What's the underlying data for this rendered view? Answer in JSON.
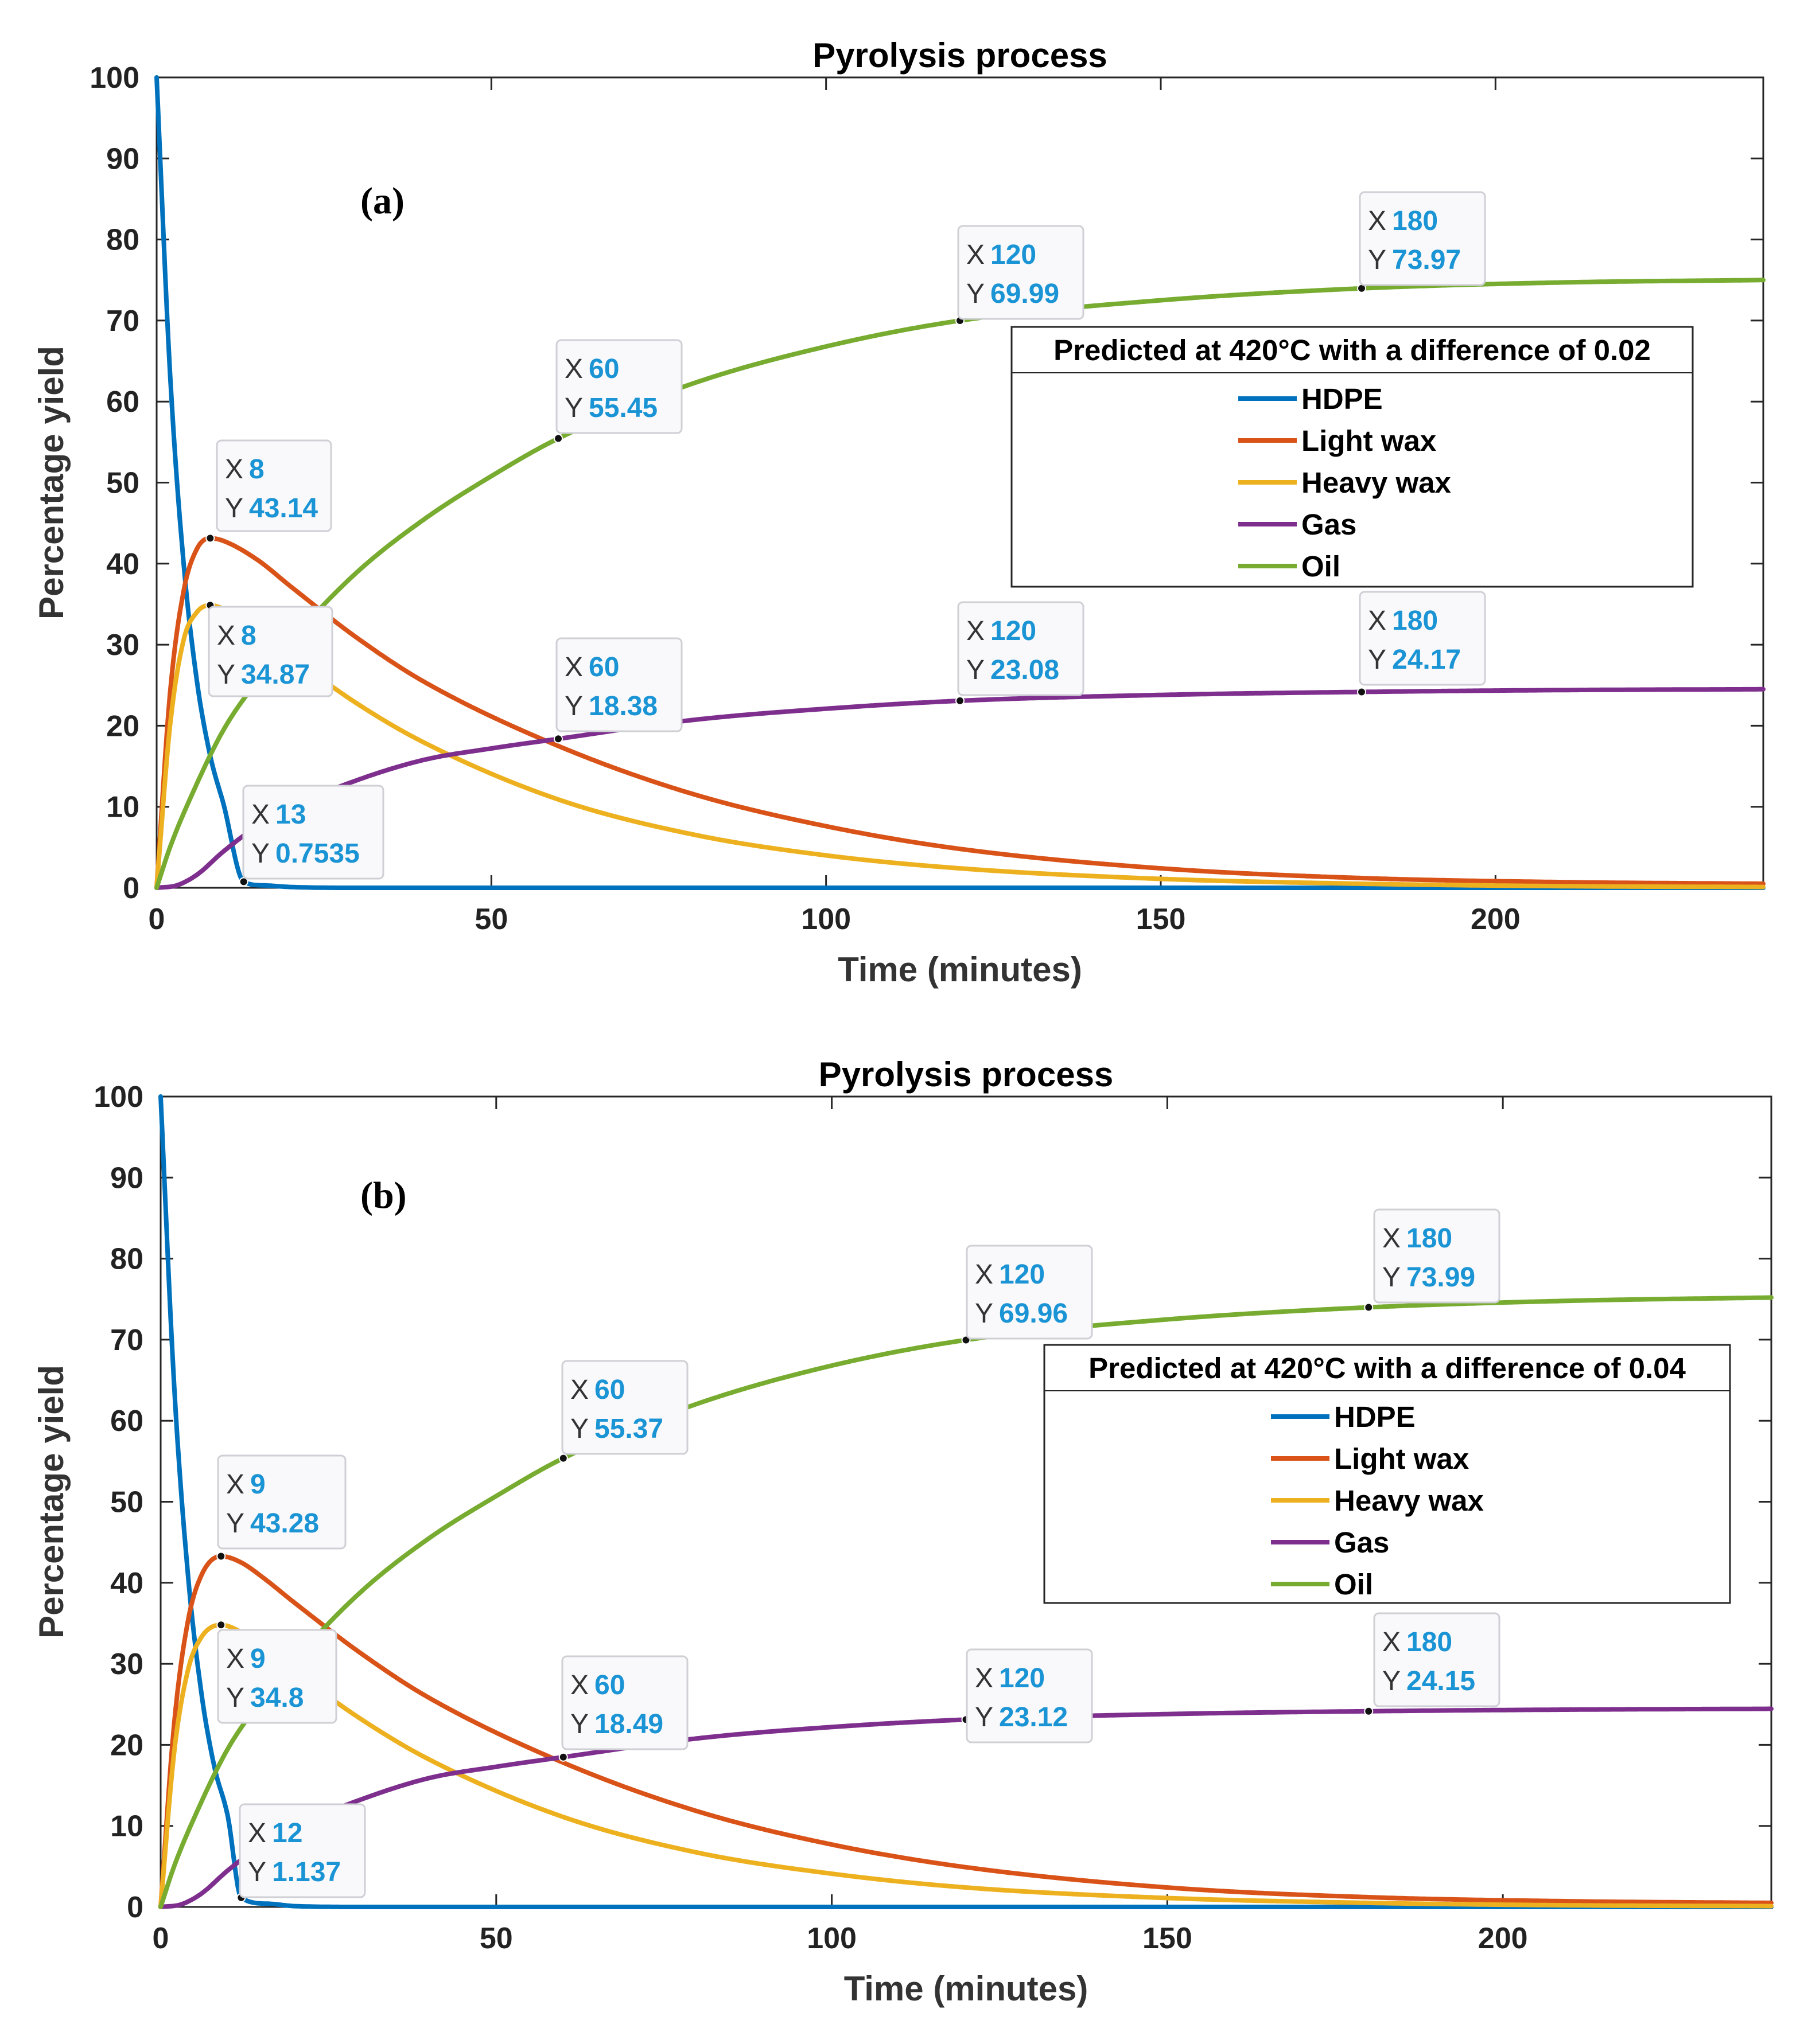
{
  "chart_data": [
    {
      "panel_label": "(a)",
      "type": "line",
      "title": "Pyrolysis process",
      "xlabel": "Time (minutes)",
      "ylabel": "Percentage yield",
      "xlim": [
        0,
        240
      ],
      "ylim": [
        0,
        100
      ],
      "xticks": [
        0,
        50,
        100,
        150,
        200
      ],
      "yticks": [
        0,
        10,
        20,
        30,
        40,
        50,
        60,
        70,
        80,
        90,
        100
      ],
      "legend_title": "Predicted at 420°C with a difference of 0.02",
      "legend_position": "right-center",
      "series": [
        {
          "name": "HDPE",
          "color": "#0072BD",
          "x": [
            0,
            2,
            4,
            6,
            8,
            10,
            13,
            16,
            20,
            30,
            240
          ],
          "y": [
            100,
            63.5,
            40.3,
            25.6,
            16.3,
            10.3,
            0.7535,
            0.3,
            0.1,
            0,
            0
          ]
        },
        {
          "name": "Light wax",
          "color": "#D95319",
          "x": [
            0,
            2,
            4,
            6,
            8,
            10,
            15,
            20,
            30,
            40,
            60,
            80,
            100,
            120,
            150,
            180,
            210,
            240
          ],
          "y": [
            0,
            24,
            36.5,
            41.8,
            43.14,
            42.8,
            40.5,
            37.2,
            30.8,
            25.4,
            17.5,
            11.6,
            7.6,
            4.8,
            2.4,
            1.2,
            0.7,
            0.5
          ]
        },
        {
          "name": "Heavy wax",
          "color": "#EDB120",
          "x": [
            0,
            2,
            4,
            6,
            8,
            10,
            15,
            20,
            30,
            40,
            60,
            80,
            100,
            120,
            150,
            180,
            210,
            240
          ],
          "y": [
            0,
            20,
            30.5,
            34,
            34.87,
            34.4,
            31.8,
            28.6,
            22.7,
            17.9,
            10.9,
            6.6,
            4,
            2.4,
            1.1,
            0.5,
            0.2,
            0.1
          ]
        },
        {
          "name": "Gas",
          "color": "#7E2F8E",
          "x": [
            0,
            3,
            6,
            10,
            15,
            20,
            30,
            40,
            50,
            60,
            80,
            100,
            120,
            150,
            180,
            210,
            240
          ],
          "y": [
            0,
            0.3,
            1.6,
            4.5,
            7.6,
            9.9,
            13.3,
            15.8,
            17.2,
            18.38,
            20.7,
            22.1,
            23.08,
            23.8,
            24.17,
            24.4,
            24.5
          ]
        },
        {
          "name": "Oil",
          "color": "#77AC30",
          "x": [
            0,
            2,
            5,
            10,
            15,
            20,
            30,
            40,
            50,
            60,
            80,
            100,
            120,
            150,
            180,
            210,
            240
          ],
          "y": [
            0,
            5,
            11,
            19.5,
            25.5,
            30.5,
            39,
            45.5,
            50.8,
            55.45,
            62.2,
            66.8,
            69.99,
            72.5,
            73.97,
            74.7,
            75
          ]
        }
      ],
      "annotations": [
        {
          "series": "Light wax",
          "x": 8,
          "y": 43.14,
          "x_label": "8",
          "y_label": "43.14"
        },
        {
          "series": "Heavy wax",
          "x": 8,
          "y": 34.87,
          "x_label": "8",
          "y_label": "34.87"
        },
        {
          "series": "HDPE",
          "x": 13,
          "y": 0.7535,
          "x_label": "13",
          "y_label": "0.7535"
        },
        {
          "series": "Oil",
          "x": 60,
          "y": 55.45,
          "x_label": "60",
          "y_label": "55.45"
        },
        {
          "series": "Oil",
          "x": 120,
          "y": 69.99,
          "x_label": "120",
          "y_label": "69.99"
        },
        {
          "series": "Oil",
          "x": 180,
          "y": 73.97,
          "x_label": "180",
          "y_label": "73.97"
        },
        {
          "series": "Gas",
          "x": 60,
          "y": 18.38,
          "x_label": "60",
          "y_label": "18.38"
        },
        {
          "series": "Gas",
          "x": 120,
          "y": 23.08,
          "x_label": "120",
          "y_label": "23.08"
        },
        {
          "series": "Gas",
          "x": 180,
          "y": 24.17,
          "x_label": "180",
          "y_label": "24.17"
        }
      ]
    },
    {
      "panel_label": "(b)",
      "type": "line",
      "title": "Pyrolysis process",
      "xlabel": "Time (minutes)",
      "ylabel": "Percentage yield",
      "xlim": [
        0,
        240
      ],
      "ylim": [
        0,
        100
      ],
      "xticks": [
        0,
        50,
        100,
        150,
        200
      ],
      "yticks": [
        0,
        10,
        20,
        30,
        40,
        50,
        60,
        70,
        80,
        90,
        100
      ],
      "legend_title": "Predicted at 420°C with a difference of 0.04",
      "legend_position": "right-center",
      "series": [
        {
          "name": "HDPE",
          "color": "#0072BD",
          "x": [
            0,
            2,
            4,
            6,
            8,
            10,
            12,
            16,
            20,
            30,
            240
          ],
          "y": [
            100,
            64.5,
            41.6,
            26.8,
            17.3,
            11.2,
            1.137,
            0.4,
            0.1,
            0,
            0
          ]
        },
        {
          "name": "Light wax",
          "color": "#D95319",
          "x": [
            0,
            2,
            4,
            6,
            9,
            12,
            15,
            20,
            30,
            40,
            60,
            80,
            100,
            120,
            150,
            180,
            210,
            240
          ],
          "y": [
            0,
            22.5,
            35,
            40.8,
            43.28,
            42.5,
            40.8,
            37.5,
            31.2,
            25.8,
            17.8,
            11.8,
            7.7,
            4.9,
            2.4,
            1.2,
            0.7,
            0.5
          ]
        },
        {
          "name": "Heavy wax",
          "color": "#EDB120",
          "x": [
            0,
            2,
            4,
            6,
            9,
            12,
            15,
            20,
            30,
            40,
            60,
            80,
            100,
            120,
            150,
            180,
            210,
            240
          ],
          "y": [
            0,
            19,
            29,
            33.2,
            34.8,
            33.9,
            32.2,
            29,
            23.1,
            18.2,
            11.1,
            6.7,
            4.1,
            2.4,
            1.1,
            0.5,
            0.2,
            0.1
          ]
        },
        {
          "name": "Gas",
          "color": "#7E2F8E",
          "x": [
            0,
            3,
            6,
            10,
            15,
            20,
            30,
            40,
            50,
            60,
            80,
            100,
            120,
            150,
            180,
            210,
            240
          ],
          "y": [
            0,
            0.3,
            1.6,
            4.5,
            7.6,
            9.9,
            13.3,
            15.9,
            17.3,
            18.49,
            20.8,
            22.2,
            23.12,
            23.8,
            24.15,
            24.35,
            24.45
          ]
        },
        {
          "name": "Oil",
          "color": "#77AC30",
          "x": [
            0,
            2,
            5,
            10,
            15,
            20,
            30,
            40,
            50,
            60,
            80,
            100,
            120,
            150,
            180,
            210,
            240
          ],
          "y": [
            0,
            5,
            11,
            19.5,
            25.5,
            30.5,
            39,
            45.5,
            50.7,
            55.37,
            62.1,
            66.8,
            69.96,
            72.5,
            73.99,
            74.8,
            75.2
          ]
        }
      ],
      "annotations": [
        {
          "series": "Light wax",
          "x": 9,
          "y": 43.28,
          "x_label": "9",
          "y_label": "43.28"
        },
        {
          "series": "Heavy wax",
          "x": 9,
          "y": 34.8,
          "x_label": "9",
          "y_label": "34.8"
        },
        {
          "series": "HDPE",
          "x": 12,
          "y": 1.137,
          "x_label": "12",
          "y_label": "1.137"
        },
        {
          "series": "Oil",
          "x": 60,
          "y": 55.37,
          "x_label": "60",
          "y_label": "55.37"
        },
        {
          "series": "Oil",
          "x": 120,
          "y": 69.96,
          "x_label": "120",
          "y_label": "69.96"
        },
        {
          "series": "Oil",
          "x": 180,
          "y": 73.99,
          "x_label": "180",
          "y_label": "73.99"
        },
        {
          "series": "Gas",
          "x": 60,
          "y": 18.49,
          "x_label": "60",
          "y_label": "18.49"
        },
        {
          "series": "Gas",
          "x": 120,
          "y": 23.12,
          "x_label": "120",
          "y_label": "23.12"
        },
        {
          "series": "Gas",
          "x": 180,
          "y": 24.15,
          "x_label": "180",
          "y_label": "24.15"
        }
      ]
    }
  ]
}
